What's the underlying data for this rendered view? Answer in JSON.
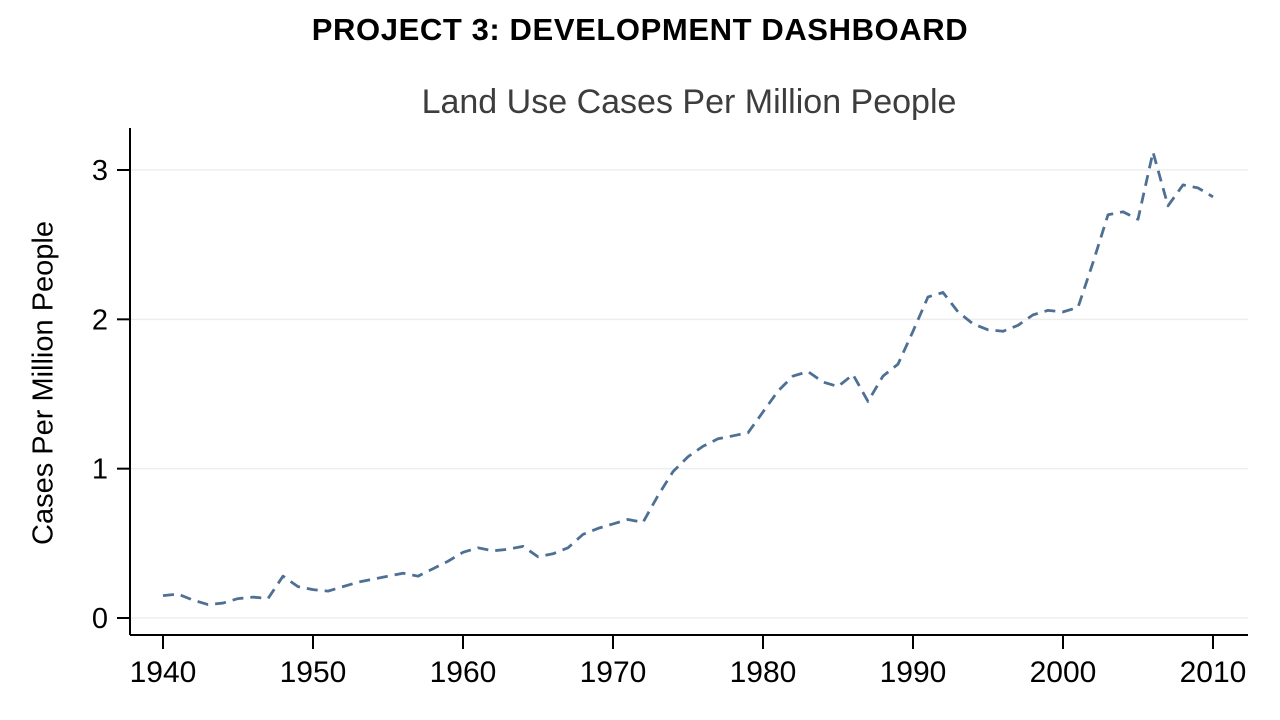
{
  "header": {
    "title": "PROJECT 3: DEVELOPMENT DASHBOARD"
  },
  "chart_data": {
    "type": "line",
    "title": "Land Use Cases Per Million People",
    "xlabel": "",
    "ylabel": "Cases Per Million People",
    "legend": "none",
    "grid": true,
    "grid_color": "#ededed",
    "line_color": "#4e7094",
    "line_style": "dashed",
    "axis_color": "#000000",
    "xlim": [
      1938,
      2012
    ],
    "ylim": [
      0,
      3.28
    ],
    "x_ticks": [
      1940,
      1950,
      1960,
      1970,
      1980,
      1990,
      2000,
      2010
    ],
    "y_ticks": [
      0,
      1,
      2,
      3
    ],
    "x": [
      1940,
      1941,
      1942,
      1943,
      1944,
      1945,
      1946,
      1947,
      1948,
      1949,
      1950,
      1951,
      1952,
      1953,
      1954,
      1955,
      1956,
      1957,
      1958,
      1959,
      1960,
      1961,
      1962,
      1963,
      1964,
      1965,
      1966,
      1967,
      1968,
      1969,
      1970,
      1971,
      1972,
      1973,
      1974,
      1975,
      1976,
      1977,
      1978,
      1979,
      1980,
      1981,
      1982,
      1983,
      1984,
      1985,
      1986,
      1987,
      1988,
      1989,
      1990,
      1991,
      1992,
      1993,
      1994,
      1995,
      1996,
      1997,
      1998,
      1999,
      2000,
      2001,
      2002,
      2003,
      2004,
      2005,
      2006,
      2007,
      2008,
      2009,
      2010
    ],
    "values": [
      0.15,
      0.16,
      0.12,
      0.09,
      0.1,
      0.13,
      0.14,
      0.13,
      0.28,
      0.21,
      0.19,
      0.18,
      0.21,
      0.24,
      0.26,
      0.28,
      0.3,
      0.28,
      0.33,
      0.38,
      0.44,
      0.47,
      0.45,
      0.46,
      0.48,
      0.41,
      0.43,
      0.47,
      0.56,
      0.6,
      0.63,
      0.66,
      0.64,
      0.82,
      0.98,
      1.08,
      1.15,
      1.2,
      1.22,
      1.24,
      1.38,
      1.52,
      1.62,
      1.65,
      1.58,
      1.55,
      1.63,
      1.45,
      1.62,
      1.7,
      1.92,
      2.15,
      2.18,
      2.05,
      1.97,
      1.93,
      1.92,
      1.96,
      2.03,
      2.06,
      2.05,
      2.08,
      2.38,
      2.7,
      2.72,
      2.67,
      3.12,
      2.76,
      2.9,
      2.88,
      2.82
    ]
  }
}
